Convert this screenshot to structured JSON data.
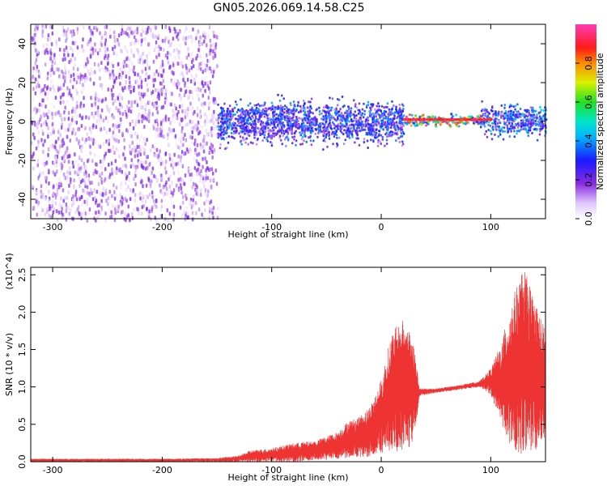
{
  "chart_data": [
    {
      "type": "heatmap",
      "title": "GN05.2026.069.14.58.C25",
      "xlabel": "Height of straight line (km)",
      "ylabel": "Frequency (Hz)",
      "xlim": [
        -320,
        150
      ],
      "ylim": [
        -50,
        50
      ],
      "xticks": [
        -300,
        -200,
        -100,
        0,
        100
      ],
      "yticks": [
        -40,
        -20,
        0,
        20,
        40
      ],
      "colorbar": {
        "label": "Normalized spectral amplitude",
        "range": [
          0.0,
          1.0
        ],
        "ticks": [
          0.0,
          0.2,
          0.4,
          0.6,
          0.8
        ],
        "tick_labels": [
          "0.0",
          "0.2",
          "0.4",
          "0.6",
          "0.8"
        ],
        "colormap": "rainbow (white-violet-blue-cyan-green-yellow-red-magenta)"
      },
      "regions": [
        {
          "x_range": [
            -320,
            -150
          ],
          "freq_range": [
            -50,
            50
          ],
          "amplitude": 0.15,
          "note": "scattered noise"
        },
        {
          "x_range": [
            -150,
            20
          ],
          "freq_range": [
            -15,
            15
          ],
          "amplitude": 0.35
        },
        {
          "x_range": [
            20,
            90
          ],
          "freq_range": [
            -3,
            5
          ],
          "amplitude": 0.9
        },
        {
          "x_range": [
            90,
            150
          ],
          "freq_range": [
            -10,
            12
          ],
          "amplitude": 0.4
        }
      ],
      "grid": false
    },
    {
      "type": "line",
      "xlabel": "Height of straight line (km)",
      "ylabel": "SNR (10 * v/v)",
      "y_multiplier": "(x10^4)",
      "xlim": [
        -320,
        150
      ],
      "ylim": [
        0,
        2.6
      ],
      "xticks": [
        -300,
        -200,
        -100,
        0,
        100
      ],
      "yticks": [
        0.0,
        0.5,
        1.0,
        1.5,
        2.0,
        2.5
      ],
      "ytick_labels": [
        "0.0",
        "0.5",
        "1.0",
        "1.5",
        "2.0",
        "2.5"
      ],
      "series": [
        {
          "color": "#ee3333",
          "envelope_x": [
            -320,
            -250,
            -200,
            -150,
            -130,
            -120,
            -100,
            -80,
            -60,
            -40,
            -30,
            -20,
            -10,
            0,
            10,
            20,
            25,
            30,
            35,
            50,
            70,
            90,
            100,
            110,
            120,
            130,
            140,
            150
          ],
          "envelope_max": [
            0.04,
            0.04,
            0.04,
            0.05,
            0.08,
            0.15,
            0.18,
            0.25,
            0.28,
            0.4,
            0.55,
            0.6,
            0.75,
            1.1,
            1.75,
            1.9,
            1.8,
            1.6,
            0.98,
            0.98,
            1.02,
            1.08,
            1.25,
            1.6,
            2.2,
            2.6,
            2.2,
            1.75
          ],
          "envelope_min": [
            0.0,
            0.0,
            0.0,
            0.0,
            0.0,
            0.0,
            0.0,
            0.0,
            0.02,
            0.03,
            0.05,
            0.06,
            0.05,
            0.1,
            0.15,
            0.12,
            0.15,
            0.3,
            0.88,
            0.92,
            0.96,
            1.0,
            0.9,
            0.5,
            0.15,
            0.08,
            0.1,
            0.3
          ]
        }
      ],
      "grid": false
    }
  ]
}
